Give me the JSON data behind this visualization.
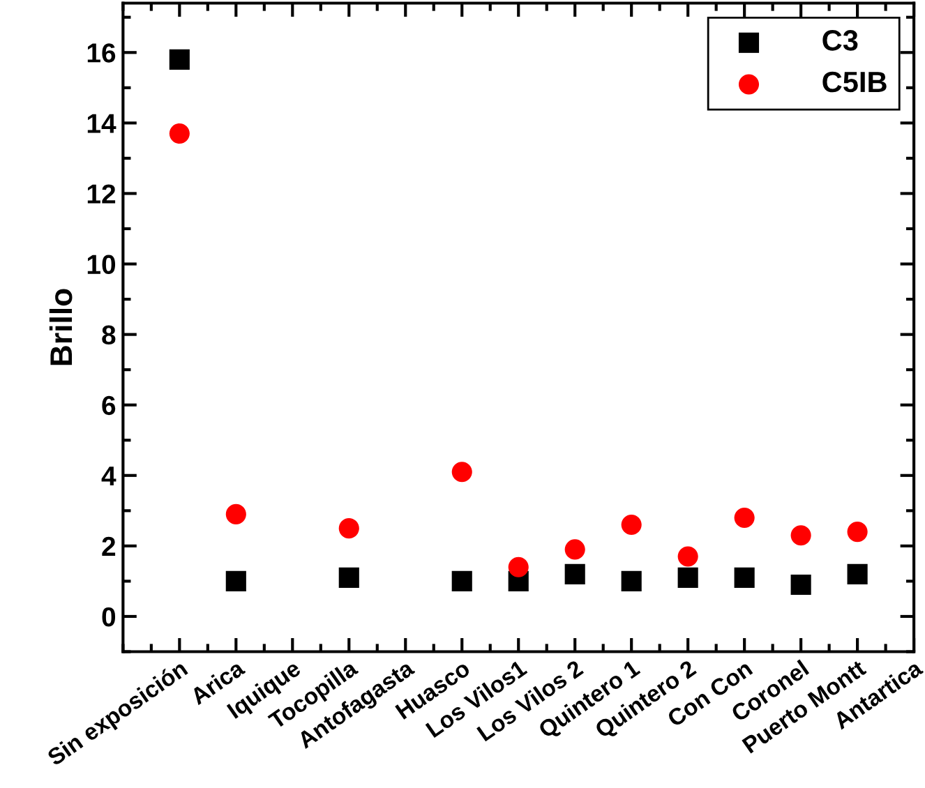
{
  "chart_data": {
    "type": "scatter",
    "ylabel": "Brillo",
    "categories": [
      "Sin exposición",
      "Arica",
      "Iquique",
      "Tocopilla",
      "Antofagasta",
      "Huasco",
      "Los Vilos1",
      "Los Vilos 2",
      "Quintero 1",
      "Quintero 2",
      "Con Con",
      "Coronel",
      "Puerto Montt",
      "Antartica"
    ],
    "series": [
      {
        "name": "C3",
        "color": "#000000",
        "marker": "square",
        "values": [
          15.8,
          1.0,
          null,
          1.1,
          null,
          1.0,
          1.0,
          1.2,
          1.0,
          1.1,
          1.1,
          0.9,
          1.2,
          null
        ]
      },
      {
        "name": "C5IB",
        "color": "#ff0000",
        "marker": "circle",
        "values": [
          13.7,
          2.9,
          null,
          2.5,
          null,
          4.1,
          1.4,
          1.9,
          2.6,
          1.7,
          2.8,
          2.3,
          2.4,
          null
        ]
      }
    ],
    "ylim": [
      -1,
      17.4
    ],
    "yticks": [
      0,
      2,
      4,
      6,
      8,
      10,
      12,
      14,
      16
    ],
    "grid": false,
    "legend": "top right"
  }
}
